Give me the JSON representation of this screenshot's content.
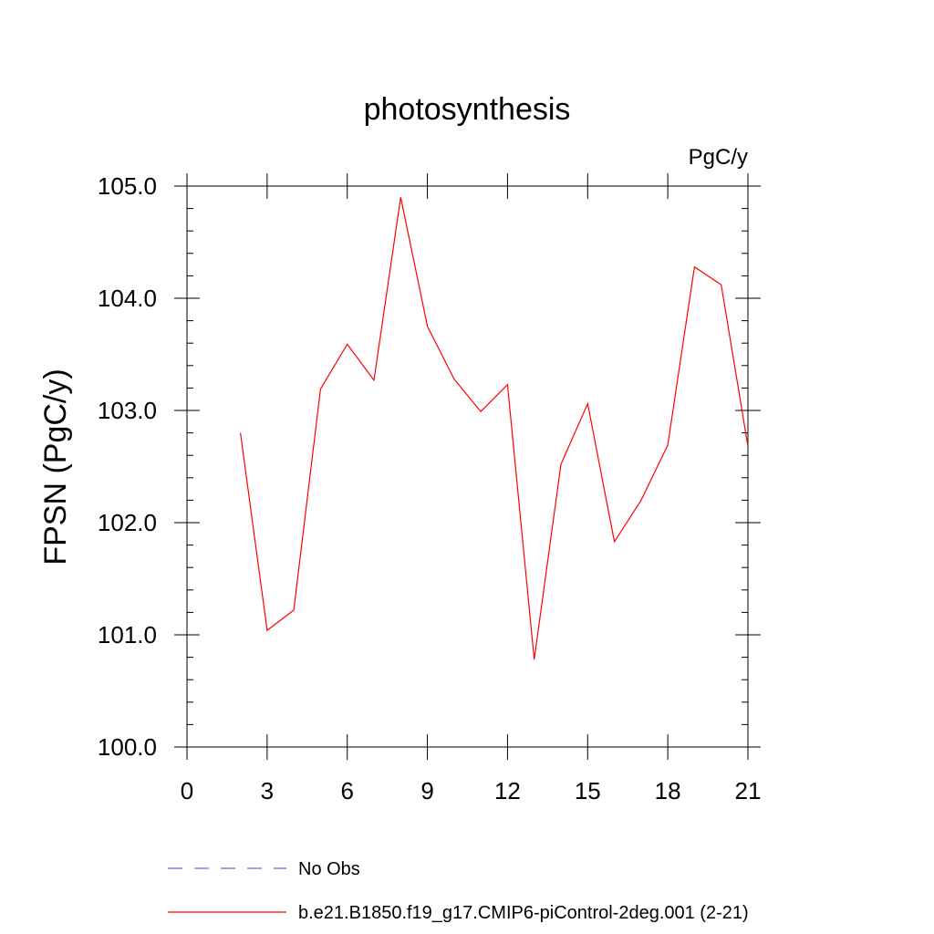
{
  "chart_data": {
    "type": "line",
    "title": "photosynthesis",
    "units_label": "PgC/y",
    "ylabel": "FPSN  (PgC/y)",
    "xlabel": "",
    "xlim": [
      0,
      21
    ],
    "ylim": [
      100.0,
      105.0
    ],
    "x_ticks": [
      0,
      3,
      6,
      9,
      12,
      15,
      18,
      21
    ],
    "y_ticks": [
      "100.0",
      "101.0",
      "102.0",
      "103.0",
      "104.0",
      "105.0"
    ],
    "grid": false,
    "legend_position": "bottom",
    "series": [
      {
        "name": "b.e21.B1850.f19_g17.CMIP6-piControl-2deg.001 (2-21)",
        "color": "#ff0000",
        "dash": "solid",
        "x": [
          2,
          3,
          4,
          5,
          6,
          7,
          8,
          9,
          10,
          11,
          12,
          13,
          14,
          15,
          16,
          17,
          18,
          19,
          20,
          21
        ],
        "y": [
          102.8,
          101.04,
          101.22,
          103.19,
          103.59,
          103.27,
          104.9,
          103.75,
          103.28,
          102.99,
          103.23,
          100.78,
          102.52,
          103.06,
          101.83,
          102.2,
          102.69,
          104.28,
          104.12,
          102.68
        ]
      }
    ],
    "legend": [
      {
        "label": "No Obs",
        "color": "#6a6ad6",
        "dash": "dashed"
      },
      {
        "label": "b.e21.B1850.f19_g17.CMIP6-piControl-2deg.001 (2-21)",
        "color": "#ff0000",
        "dash": "solid"
      }
    ]
  }
}
